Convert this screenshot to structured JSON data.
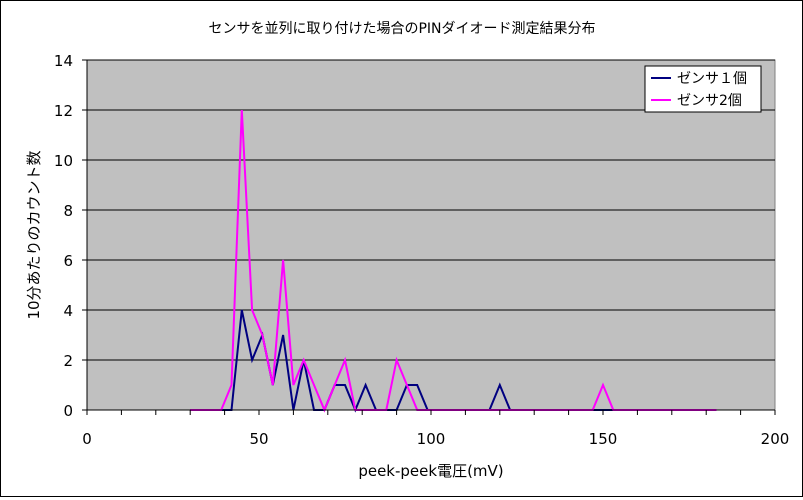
{
  "chart_data": {
    "type": "line",
    "title": "センサを並列に取り付けた場合のPINダイオード測定結果分布",
    "xlabel": "peek-peek電圧(mV)",
    "ylabel": "10分あたりのカウント数",
    "xlim": [
      0,
      200
    ],
    "ylim": [
      0,
      14
    ],
    "xticks": [
      0,
      50,
      100,
      150,
      200
    ],
    "yticks": [
      0,
      2,
      4,
      6,
      8,
      10,
      12,
      14
    ],
    "grid": "horizontal",
    "legend_position": "top-right",
    "x": [
      30,
      33,
      36,
      39,
      42,
      45,
      48,
      51,
      54,
      57,
      60,
      63,
      66,
      69,
      72,
      75,
      78,
      81,
      84,
      87,
      90,
      93,
      96,
      99,
      102,
      105,
      108,
      111,
      114,
      117,
      120,
      123,
      126,
      129,
      132,
      135,
      138,
      141,
      144,
      147,
      150,
      153,
      156,
      159,
      162,
      165,
      168,
      171,
      174,
      177,
      180,
      183
    ],
    "series": [
      {
        "name": "ゼンサ１個",
        "color": "#000080",
        "values": [
          0,
          0,
          0,
          0,
          0,
          4,
          2,
          3,
          1,
          3,
          0,
          2,
          0,
          0,
          1,
          1,
          0,
          1,
          0,
          0,
          0,
          1,
          1,
          0,
          0,
          0,
          0,
          0,
          0,
          0,
          1,
          0,
          0,
          0,
          0,
          0,
          0,
          0,
          0,
          0,
          0,
          0,
          0,
          0,
          0,
          0,
          0,
          0,
          0,
          0,
          0,
          0
        ]
      },
      {
        "name": "ゼンサ2個",
        "color": "#ff00ff",
        "values": [
          0,
          0,
          0,
          0,
          1,
          12,
          4,
          3,
          1,
          6,
          1,
          2,
          1,
          0,
          1,
          2,
          0,
          0,
          0,
          0,
          2,
          1,
          0,
          0,
          0,
          0,
          0,
          0,
          0,
          0,
          0,
          0,
          0,
          0,
          0,
          0,
          0,
          0,
          0,
          0,
          1,
          0,
          0,
          0,
          0,
          0,
          0,
          0,
          0,
          0,
          0,
          0
        ]
      }
    ],
    "colors": {
      "plot_background": "#c0c0c0",
      "gridline": "#000000"
    }
  }
}
